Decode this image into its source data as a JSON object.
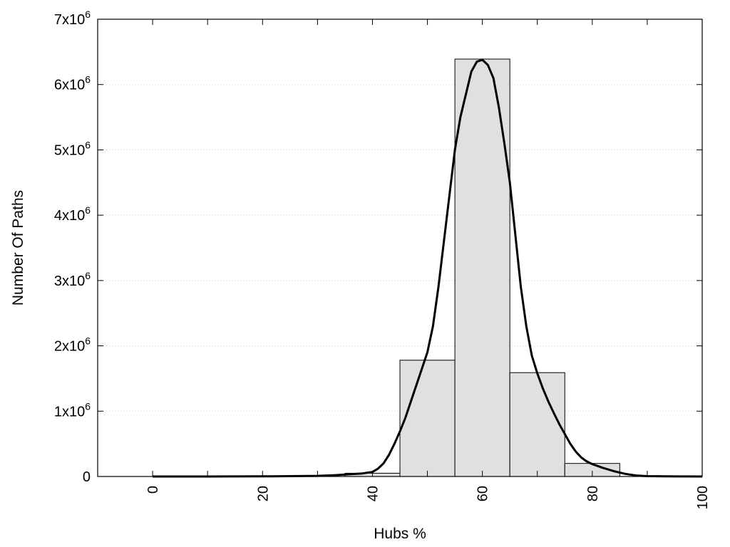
{
  "chart_data": {
    "type": "bar",
    "title": "",
    "xlabel": "Hubs %",
    "ylabel": "Number Of Paths",
    "xlim": [
      -10,
      100
    ],
    "ylim": [
      0,
      7000000
    ],
    "grid": true,
    "x_ticks": [
      "0",
      "20",
      "40",
      "60",
      "80",
      "100"
    ],
    "x_tick_values": [
      0,
      10,
      20,
      30,
      40,
      50,
      60,
      70,
      80,
      90,
      100
    ],
    "y_ticks": [
      {
        "value": 0,
        "base": "0",
        "exp": ""
      },
      {
        "value": 1000000,
        "base": "1x10",
        "exp": "6"
      },
      {
        "value": 2000000,
        "base": "2x10",
        "exp": "6"
      },
      {
        "value": 3000000,
        "base": "3x10",
        "exp": "6"
      },
      {
        "value": 4000000,
        "base": "4x10",
        "exp": "6"
      },
      {
        "value": 5000000,
        "base": "5x10",
        "exp": "6"
      },
      {
        "value": 6000000,
        "base": "6x10",
        "exp": "6"
      },
      {
        "value": 7000000,
        "base": "7x10",
        "exp": "6"
      }
    ],
    "bin_width": 10,
    "bars": {
      "centers": [
        0,
        10,
        20,
        30,
        40,
        50,
        60,
        70,
        80,
        90,
        100
      ],
      "values": [
        0,
        0,
        0,
        0,
        50000,
        1780000,
        6390000,
        1590000,
        200000,
        0,
        0
      ]
    },
    "curve": {
      "x": [
        0,
        5,
        10,
        15,
        20,
        25,
        30,
        33,
        36,
        38,
        40,
        41,
        42,
        43,
        44,
        45,
        46,
        47,
        48,
        49,
        50,
        51,
        52,
        53,
        54,
        55,
        56,
        57,
        58,
        59,
        60,
        61,
        62,
        63,
        64,
        65,
        66,
        67,
        68,
        69,
        70,
        71,
        72,
        73,
        74,
        75,
        76,
        77,
        78,
        79,
        80,
        82,
        84,
        86,
        88,
        90,
        95,
        100
      ],
      "y": [
        0,
        0,
        0,
        1000,
        2000,
        5000,
        10000,
        20000,
        35000,
        45000,
        70000,
        120000,
        200000,
        330000,
        500000,
        690000,
        900000,
        1150000,
        1400000,
        1650000,
        1900000,
        2300000,
        2900000,
        3600000,
        4300000,
        5000000,
        5500000,
        5850000,
        6200000,
        6350000,
        6380000,
        6300000,
        6100000,
        5650000,
        5100000,
        4500000,
        3700000,
        2900000,
        2300000,
        1850000,
        1580000,
        1350000,
        1150000,
        970000,
        800000,
        650000,
        500000,
        380000,
        290000,
        230000,
        190000,
        130000,
        80000,
        40000,
        15000,
        5000,
        1000,
        0
      ]
    }
  }
}
